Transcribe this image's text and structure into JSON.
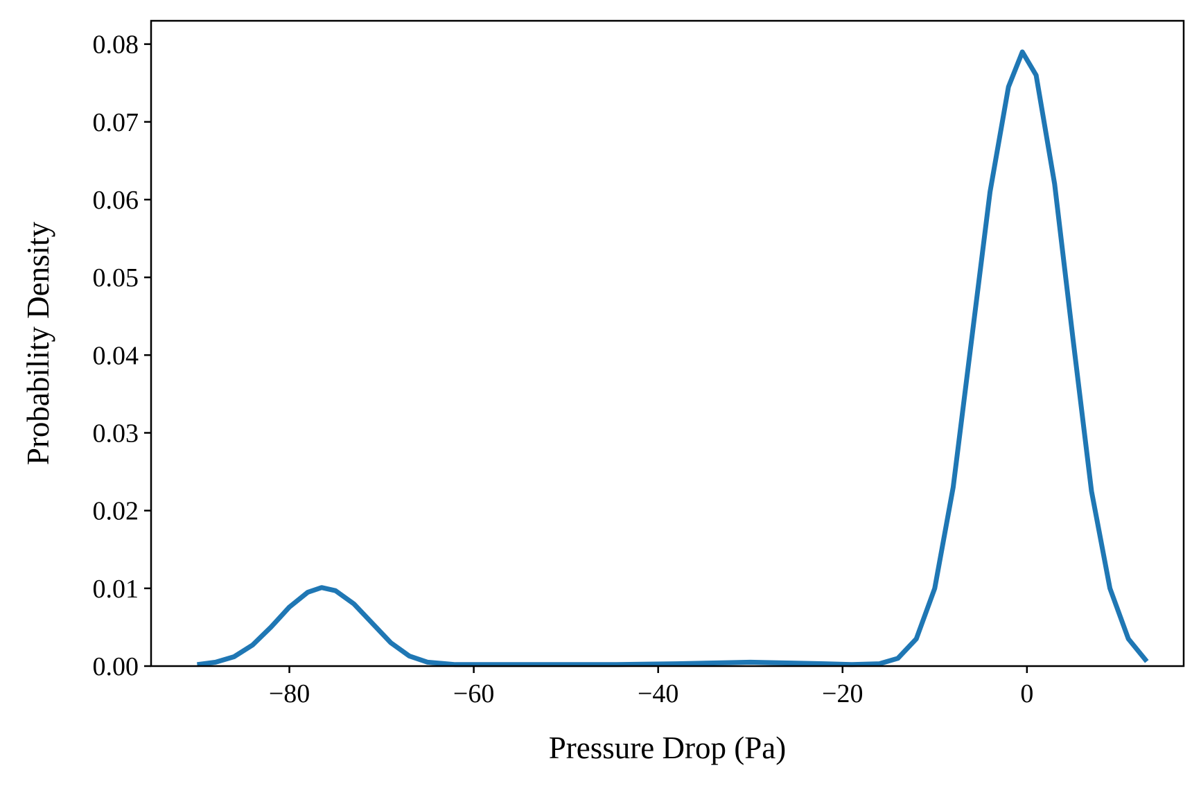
{
  "chart_data": {
    "type": "line",
    "title": "",
    "xlabel": "Pressure Drop (Pa)",
    "ylabel": "Probability Density",
    "xlim": [
      -95,
      17
    ],
    "ylim": [
      0,
      0.083
    ],
    "grid": false,
    "legend": "none",
    "x_ticks": [
      -80,
      -60,
      -40,
      -20,
      0
    ],
    "x_tick_labels": [
      "−80",
      "−60",
      "−40",
      "−20",
      "0"
    ],
    "y_ticks": [
      0,
      0.01,
      0.02,
      0.03,
      0.04,
      0.05,
      0.06,
      0.07,
      0.08
    ],
    "y_tick_labels": [
      "0.00",
      "0.01",
      "0.02",
      "0.03",
      "0.04",
      "0.05",
      "0.06",
      "0.07",
      "0.08"
    ],
    "series": [
      {
        "color": "#1f77b4",
        "points": [
          [
            -90,
            0.0002
          ],
          [
            -88,
            0.0005
          ],
          [
            -86,
            0.0012
          ],
          [
            -84,
            0.0027
          ],
          [
            -82,
            0.005
          ],
          [
            -80,
            0.0076
          ],
          [
            -78,
            0.0095
          ],
          [
            -76.5,
            0.0101
          ],
          [
            -75,
            0.0097
          ],
          [
            -73,
            0.008
          ],
          [
            -71,
            0.0055
          ],
          [
            -69,
            0.003
          ],
          [
            -67,
            0.0013
          ],
          [
            -65,
            0.0005
          ],
          [
            -62,
            0.0002
          ],
          [
            -55,
            0.0002
          ],
          [
            -45,
            0.0002
          ],
          [
            -38,
            0.0003
          ],
          [
            -34,
            0.0004
          ],
          [
            -30,
            0.0005
          ],
          [
            -26,
            0.0004
          ],
          [
            -22,
            0.0003
          ],
          [
            -19,
            0.0002
          ],
          [
            -16,
            0.0003
          ],
          [
            -14,
            0.001
          ],
          [
            -12,
            0.0035
          ],
          [
            -10,
            0.01
          ],
          [
            -8,
            0.023
          ],
          [
            -6,
            0.042
          ],
          [
            -4,
            0.061
          ],
          [
            -2,
            0.0745
          ],
          [
            -0.5,
            0.079
          ],
          [
            1,
            0.076
          ],
          [
            3,
            0.062
          ],
          [
            5,
            0.042
          ],
          [
            7,
            0.0225
          ],
          [
            9,
            0.01
          ],
          [
            11,
            0.0035
          ],
          [
            13,
            0.0006
          ]
        ]
      }
    ]
  }
}
